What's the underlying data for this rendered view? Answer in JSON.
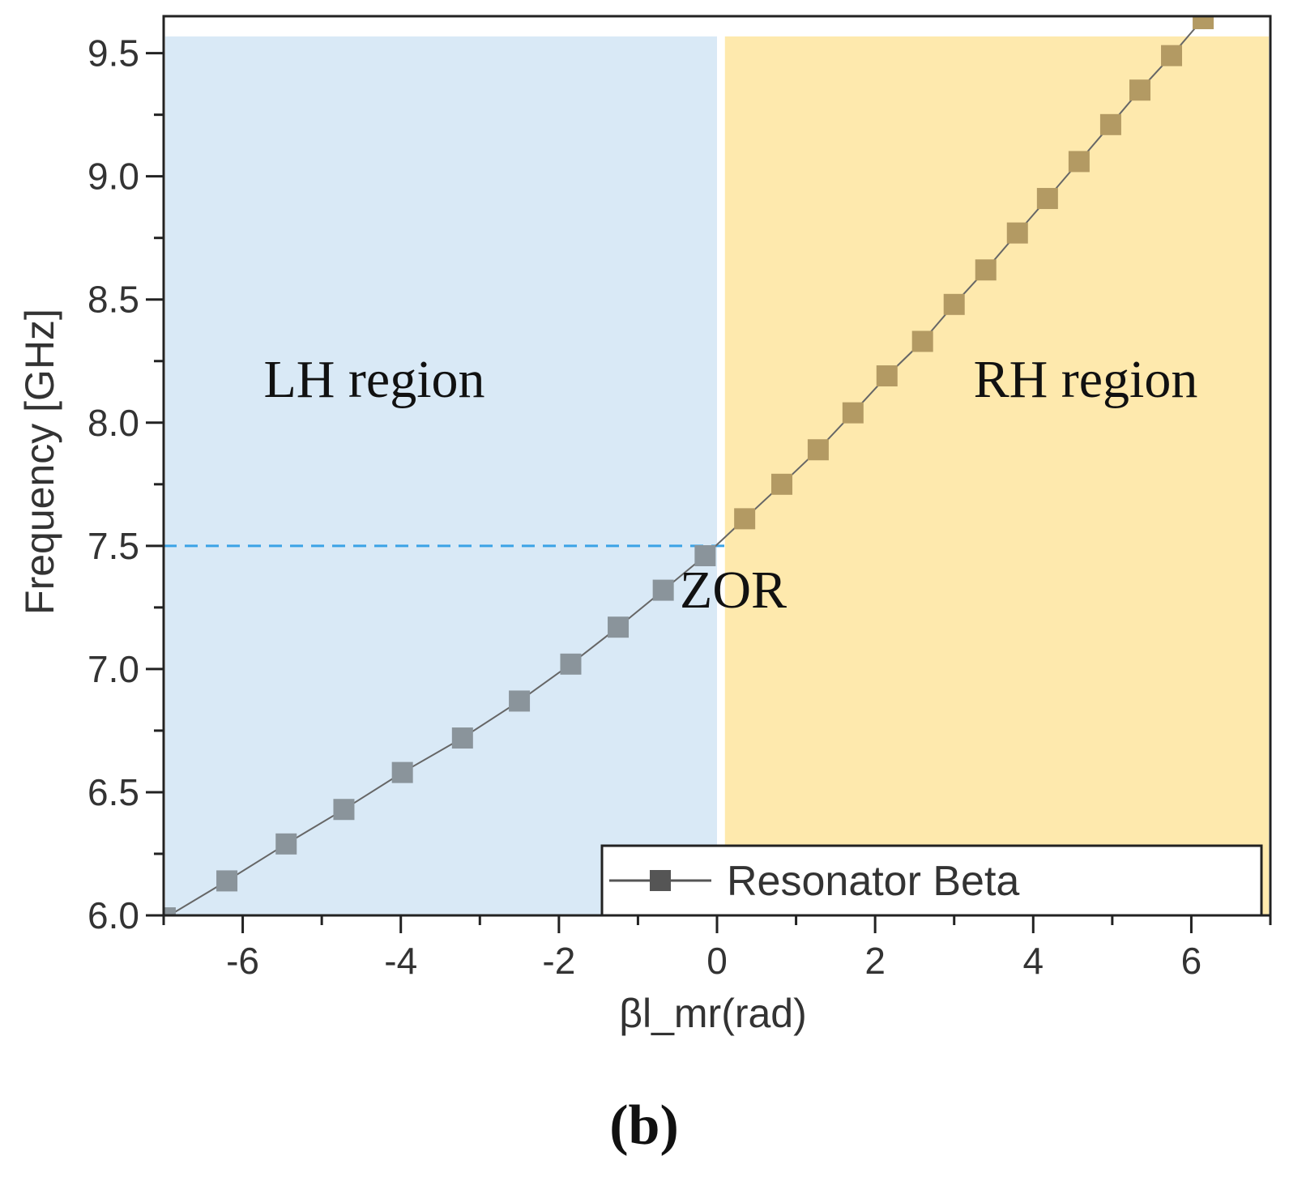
{
  "chart_data": {
    "type": "line",
    "xlabel": "βl_mr(rad)",
    "ylabel": "Frequency [GHz]",
    "xlim": [
      -7,
      7
    ],
    "ylim": [
      6.0,
      9.65
    ],
    "x_ticks": [
      -6,
      -4,
      -2,
      0,
      2,
      4,
      6
    ],
    "x_tick_labels": [
      "-6",
      "-4",
      "-2",
      "0",
      "2",
      "4",
      "6"
    ],
    "y_ticks": [
      6.0,
      6.5,
      7.0,
      7.5,
      8.0,
      8.5,
      9.0,
      9.5
    ],
    "y_tick_labels": [
      "6.0",
      "6.5",
      "7.0",
      "7.5",
      "8.0",
      "8.5",
      "9.0",
      "9.5"
    ],
    "grid": false,
    "legend_position": "bottom-right",
    "series": [
      {
        "name": "Resonator Beta",
        "color": "#555555",
        "marker": "square",
        "x": [
          -6.98,
          -6.2,
          -5.45,
          -4.72,
          -3.98,
          -3.22,
          -2.5,
          -1.85,
          -1.25,
          -0.68,
          -0.15,
          0.35,
          0.82,
          1.28,
          1.72,
          2.15,
          2.6,
          3.0,
          3.4,
          3.8,
          4.18,
          4.58,
          4.98,
          5.35,
          5.75,
          6.15
        ],
        "y": [
          5.99,
          6.14,
          6.29,
          6.43,
          6.58,
          6.72,
          6.87,
          7.02,
          7.17,
          7.32,
          7.46,
          7.61,
          7.75,
          7.89,
          8.04,
          8.19,
          8.33,
          8.48,
          8.62,
          8.77,
          8.91,
          9.06,
          9.21,
          9.35,
          9.49,
          9.64
        ]
      }
    ],
    "regions": [
      {
        "label": "LH region",
        "x_from": -7,
        "x_to": 0.0,
        "color": "#d9e9f6"
      },
      {
        "label": "RH region",
        "x_from": 0.1,
        "x_to": 7,
        "color": "#fee9ad"
      }
    ],
    "reference_line": {
      "y": 7.5,
      "x_from": -7,
      "x_to": 0.1,
      "color": "#3ba3e6",
      "style": "dashed"
    },
    "annotations": [
      {
        "text": "ZOR"
      }
    ]
  },
  "figure_label": "(b)"
}
